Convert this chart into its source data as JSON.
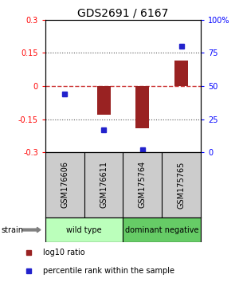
{
  "title": "GDS2691 / 6167",
  "samples": [
    "GSM176606",
    "GSM176611",
    "GSM175764",
    "GSM175765"
  ],
  "log10_ratio": [
    0.0,
    -0.13,
    -0.19,
    0.115
  ],
  "percentile_rank_pct": [
    44,
    17,
    2,
    80
  ],
  "groups": [
    {
      "label": "wild type",
      "samples": [
        0,
        1
      ],
      "color": "#bbffbb"
    },
    {
      "label": "dominant negative",
      "samples": [
        2,
        3
      ],
      "color": "#66cc66"
    }
  ],
  "group_label": "strain",
  "ylim": [
    -0.3,
    0.3
  ],
  "yticks_left": [
    -0.3,
    -0.15,
    0,
    0.15,
    0.3
  ],
  "yticks_right_vals": [
    0,
    25,
    50,
    75,
    100
  ],
  "bar_color": "#992222",
  "dot_color": "#2222cc",
  "zero_line_color": "#cc3333",
  "dotted_line_color": "#555555",
  "background_color": "#ffffff",
  "sample_bg": "#cccccc",
  "legend_red_label": "log10 ratio",
  "legend_blue_label": "percentile rank within the sample",
  "title_fontsize": 10,
  "axis_fontsize": 7,
  "tick_fontsize": 7,
  "sample_fontsize": 7,
  "group_fontsize": 7,
  "legend_fontsize": 7
}
